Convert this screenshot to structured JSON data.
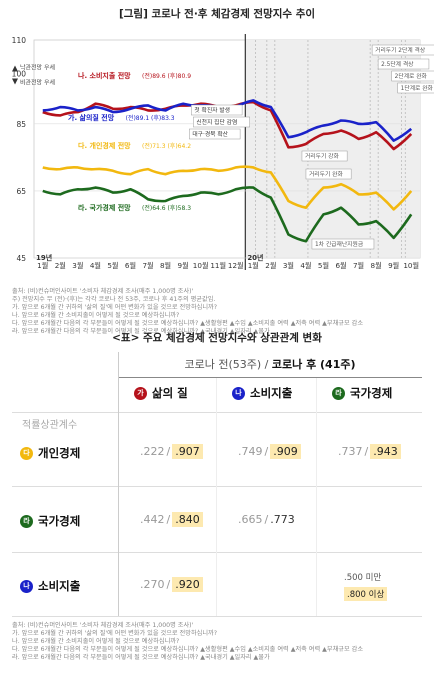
{
  "figure": {
    "title": "[그림] 코로나 전·후 체감경제 전망지수 추이",
    "y_arrow_up": "낙관전망 우세",
    "y_arrow_down": "비관전망 우세",
    "year_labels": [
      "19년",
      "20년"
    ],
    "annotations": [
      {
        "text": "첫 확진자 발생",
        "color": "#333"
      },
      {
        "text": "신천지 집단 감염",
        "color": "#333"
      },
      {
        "text": "대구·경북 확산",
        "color": "#333"
      },
      {
        "text": "거리두기 2단계 격상",
        "color": "#555"
      },
      {
        "text": "2.5단계 격상",
        "color": "#555"
      },
      {
        "text": "2단계로 완화",
        "color": "#555"
      },
      {
        "text": "1단계로 완화",
        "color": "#555"
      },
      {
        "text": "거리두기 강화",
        "color": "#555"
      },
      {
        "text": "거리두기 완화",
        "color": "#555"
      },
      {
        "text": "1차 긴급재난지원금",
        "color": "#555"
      }
    ],
    "series_labels": [
      {
        "text": "나. 소비지출 전망",
        "vals": "(전)89.6 (후)80.9",
        "color": "#b5121b"
      },
      {
        "text": "가. 삶의질 전망",
        "vals": "(전)89.1 (후)83.3",
        "color": "#1a22c9"
      },
      {
        "text": "다. 개인경제 전망",
        "vals": "(전)71.3 (후)64.2",
        "color": "#f2b80f"
      },
      {
        "text": "라. 국가경제 전망",
        "vals": "(전)64.6 (후)58.3",
        "color": "#1d6a1e"
      }
    ],
    "notes": [
      "출처: (비)컨슈머인사이트 '소비자 체감경제 조사(매주 1,000명 조사)'",
      "주) 전망지수 무 (전)·(후)는 각각 코로나 전 53주, 코로나 후 41주의 평균값임.",
      "가. 앞으로 6개월 간 귀하의 '삶의 질'에 어떤 변화가 있을 것으로 전망하십니까?",
      "나. 앞으로 6개월 간 소비지출이 어떻게 될 것으로 예상하십니까?",
      "다. 앞으로 6개월간 다음의 각 부문들이 어떻게 될 것으로 예상하십니까? ▲생활형편 ▲수입 ▲소비지출 여력 ▲저축 여력 ▲부채규모 감소",
      "라. 앞으로 6개월간 다음의 각 부문들이 어떻게 될 것으로 예상하십니까? ▲국내경기 ▲일자리 ▲물가"
    ]
  },
  "chart_data": {
    "type": "line",
    "x": [
      "2019-01",
      "2019-02",
      "2019-03",
      "2019-04",
      "2019-05",
      "2019-06",
      "2019-07",
      "2019-08",
      "2019-09",
      "2019-10",
      "2019-11",
      "2019-12",
      "2020-01",
      "2020-02",
      "2020-03",
      "2020-04",
      "2020-05",
      "2020-06",
      "2020-07",
      "2020-08",
      "2020-09",
      "2020-10"
    ],
    "xticklabels": [
      "1월",
      "2월",
      "3월",
      "4월",
      "5월",
      "6월",
      "7월",
      "8월",
      "9월",
      "10월",
      "11월",
      "12월",
      "1월",
      "2월",
      "3월",
      "4월",
      "5월",
      "6월",
      "7월",
      "8월",
      "9월",
      "10월"
    ],
    "yticks": [
      45,
      65,
      85,
      100,
      110
    ],
    "ylim": [
      45,
      110
    ],
    "series": [
      {
        "name": "나. 소비지출 전망",
        "color": "#b5121b",
        "values": [
          88.5,
          87.5,
          88.5,
          91,
          89.5,
          90,
          89,
          89.5,
          90.5,
          91,
          90,
          90.5,
          91.5,
          89,
          78,
          79,
          82,
          83,
          80.5,
          82.5,
          77.5,
          82
        ]
      },
      {
        "name": "가. 삶의질 전망",
        "color": "#1a22c9",
        "values": [
          89,
          90,
          89,
          90,
          88.5,
          89.5,
          90.5,
          89,
          91,
          90.5,
          90,
          90,
          92,
          90,
          81,
          82.5,
          84.5,
          86,
          85,
          85.5,
          80,
          83.5
        ]
      },
      {
        "name": "다. 개인경제 전망",
        "color": "#f2b80f",
        "values": [
          72,
          71.5,
          72,
          71.5,
          71,
          70,
          71.5,
          70,
          71,
          71.5,
          71,
          72,
          72,
          70.5,
          62,
          60,
          66,
          67,
          64,
          64.5,
          59.5,
          65
        ]
      },
      {
        "name": "라. 국가경제 전망",
        "color": "#1d6a1e",
        "values": [
          65,
          64,
          65.5,
          66,
          64.5,
          65.5,
          62.5,
          62,
          63.5,
          64.5,
          64,
          65.5,
          66,
          63,
          52,
          50,
          58,
          60,
          55,
          56,
          51,
          58
        ]
      }
    ]
  },
  "table": {
    "title": "<표> 주요 체감경제 전망지수와 상관관계 변화",
    "header_pre": "코로나 전(53주)",
    "header_sep": " / ",
    "header_post": "코로나 후 (41주)",
    "corner": "적률상관계수",
    "columns": [
      {
        "badge": "가",
        "color": "#b5121b",
        "label": "삶의 질"
      },
      {
        "badge": "나",
        "color": "#1a22c9",
        "label": "소비지출"
      },
      {
        "badge": "라",
        "color": "#1d6a1e",
        "label": "국가경제"
      }
    ],
    "rows": [
      {
        "badge": "다",
        "color": "#f2b80f",
        "label": "개인경제",
        "cells": [
          {
            "pre": ".222",
            "post": ".907"
          },
          {
            "pre": ".749",
            "post": ".909"
          },
          {
            "pre": ".737",
            "post": ".943"
          }
        ]
      },
      {
        "badge": "라",
        "color": "#1d6a1e",
        "label": "국가경제",
        "cells": [
          {
            "pre": ".442",
            "post": ".840"
          },
          {
            "pre": ".665",
            "post": ".773"
          },
          {
            "pre": "",
            "post": ""
          }
        ]
      },
      {
        "badge": "나",
        "color": "#1a22c9",
        "label": "소비지출",
        "cells": [
          {
            "pre": ".270",
            "post": ".920"
          },
          {
            "pre": "",
            "post": ""
          },
          {
            "pre": "",
            "post": ""
          }
        ]
      }
    ],
    "legend": [
      ".500 미만",
      ".800 이상"
    ],
    "notes": [
      "출처: (비)컨슈머인사이트 '소비자 체감경제 조사(매주 1,000명 조사)'",
      "가. 앞으로 6개월 간 귀하의 '삶의 질'에 어떤 변화가 있을 것으로 전망하십니까?",
      "나. 앞으로 6개월 간 소비지출이 어떻게 될 것으로 예상하십니까?",
      "다. 앞으로 6개월간 다음의 각 부문들이 어떻게 될 것으로 예상하십니까? ▲생활형편 ▲수입 ▲소비지출 여력 ▲저축 여력 ▲부채규모 감소",
      "라. 앞으로 6개월간 다음의 각 부문들이 어떻게 될 것으로 예상하십니까? ▲국내경기 ▲일자리 ▲물가"
    ]
  }
}
